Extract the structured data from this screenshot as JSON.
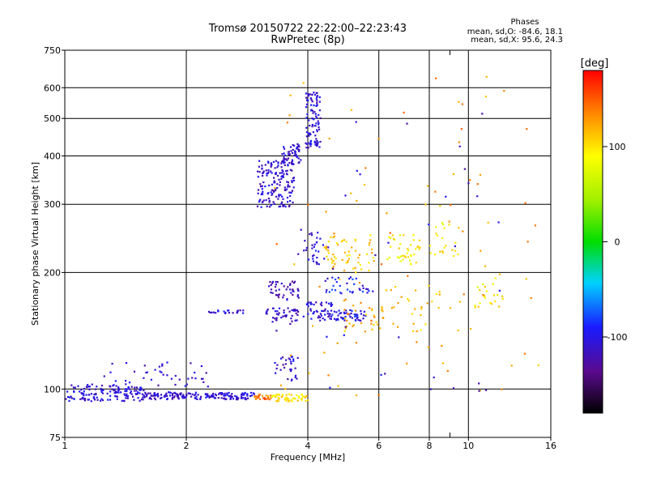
{
  "chart_data": {
    "type": "scatter",
    "title": "Tromsø 20150722 22:22:00–22:23:43",
    "subtitle": "RwPretec (8p)",
    "xlabel": "Frequency [MHz]",
    "ylabel": "Stationary phase Virtual Height [km]",
    "x_scale": "log",
    "y_scale": "log",
    "xlim": [
      1,
      16
    ],
    "ylim": [
      75,
      750
    ],
    "x_ticks": [
      1,
      2,
      4,
      6,
      8,
      10,
      16
    ],
    "x_tick_labels": [
      "1",
      "2",
      "4",
      "6",
      "8",
      "10",
      "16"
    ],
    "x_grid": [
      2,
      4,
      6,
      8,
      10
    ],
    "x_minor": [
      9
    ],
    "y_ticks": [
      75,
      100,
      200,
      300,
      400,
      500,
      600,
      750
    ],
    "y_tick_labels": [
      "75",
      "100",
      "200",
      "300",
      "400",
      "500",
      "600",
      "750"
    ],
    "y_grid": [
      100,
      200,
      300,
      400,
      500,
      600
    ],
    "grid": true,
    "phases_box": {
      "title": "Phases",
      "line_o": "mean, sd,O: -84.6, 18.1",
      "line_x": "mean, sd,X:  95.6, 24.3"
    },
    "colorbar": {
      "label": "[deg]",
      "range": [
        -180,
        180
      ],
      "ticks": [
        100,
        0,
        -100
      ],
      "tick_labels": [
        "100",
        "0",
        "-100"
      ]
    },
    "clusters": [
      {
        "freq": [
          1.0,
          1.55
        ],
        "height": [
          93,
          103
        ],
        "phase": -105,
        "count": 140
      },
      {
        "freq": [
          1.55,
          2.95
        ],
        "height": [
          94,
          98
        ],
        "phase": -108,
        "count": 170
      },
      {
        "freq": [
          1.25,
          2.3
        ],
        "height": [
          98,
          118
        ],
        "phase": -105,
        "count": 45
      },
      {
        "freq": [
          2.25,
          2.8
        ],
        "height": [
          156,
          160
        ],
        "phase": -108,
        "count": 22
      },
      {
        "freq": [
          2.95,
          3.25
        ],
        "height": [
          94,
          97
        ],
        "phase": 140,
        "count": 25
      },
      {
        "freq": [
          3.25,
          4.0
        ],
        "height": [
          93,
          97
        ],
        "phase": 100,
        "count": 55
      },
      {
        "freq": [
          3.0,
          3.7
        ],
        "height": [
          295,
          390
        ],
        "phase": -108,
        "count": 160
      },
      {
        "freq": [
          3.45,
          3.85
        ],
        "height": [
          380,
          430
        ],
        "phase": -108,
        "count": 55
      },
      {
        "freq": [
          3.95,
          4.3
        ],
        "height": [
          420,
          585
        ],
        "phase": -108,
        "count": 95
      },
      {
        "freq": [
          3.2,
          3.8
        ],
        "height": [
          170,
          190
        ],
        "phase": -120,
        "count": 45
      },
      {
        "freq": [
          3.1,
          3.8
        ],
        "height": [
          148,
          162
        ],
        "phase": -110,
        "count": 45
      },
      {
        "freq": [
          3.3,
          3.8
        ],
        "height": [
          105,
          122
        ],
        "phase": -110,
        "count": 30
      },
      {
        "freq": [
          3.9,
          4.6
        ],
        "height": [
          150,
          168
        ],
        "phase": -105,
        "count": 40
      },
      {
        "freq": [
          3.9,
          4.4
        ],
        "height": [
          210,
          255
        ],
        "phase": -100,
        "count": 30
      },
      {
        "freq": [
          4.3,
          5.6
        ],
        "height": [
          150,
          160
        ],
        "phase": -100,
        "count": 60
      },
      {
        "freq": [
          4.4,
          5.8
        ],
        "height": [
          175,
          195
        ],
        "phase": -95,
        "count": 35
      },
      {
        "freq": [
          4.4,
          5.9
        ],
        "height": [
          200,
          250
        ],
        "phase": 110,
        "count": 60
      },
      {
        "freq": [
          4.8,
          6.2
        ],
        "height": [
          140,
          170
        ],
        "phase": 120,
        "count": 30
      },
      {
        "freq": [
          6.2,
          7.6
        ],
        "height": [
          210,
          250
        ],
        "phase": 95,
        "count": 40
      },
      {
        "freq": [
          6.0,
          8.5
        ],
        "height": [
          140,
          185
        ],
        "phase": 115,
        "count": 30
      },
      {
        "freq": [
          8.0,
          9.5
        ],
        "height": [
          220,
          270
        ],
        "phase": 95,
        "count": 22
      },
      {
        "freq": [
          10.3,
          12.3
        ],
        "height": [
          160,
          200
        ],
        "phase": 95,
        "count": 22
      },
      {
        "freq": [
          3.3,
          15
        ],
        "height": [
          95,
          650
        ],
        "phase": 130,
        "count": 90
      },
      {
        "freq": [
          3.3,
          12
        ],
        "height": [
          95,
          600
        ],
        "phase": -110,
        "count": 40
      }
    ]
  }
}
